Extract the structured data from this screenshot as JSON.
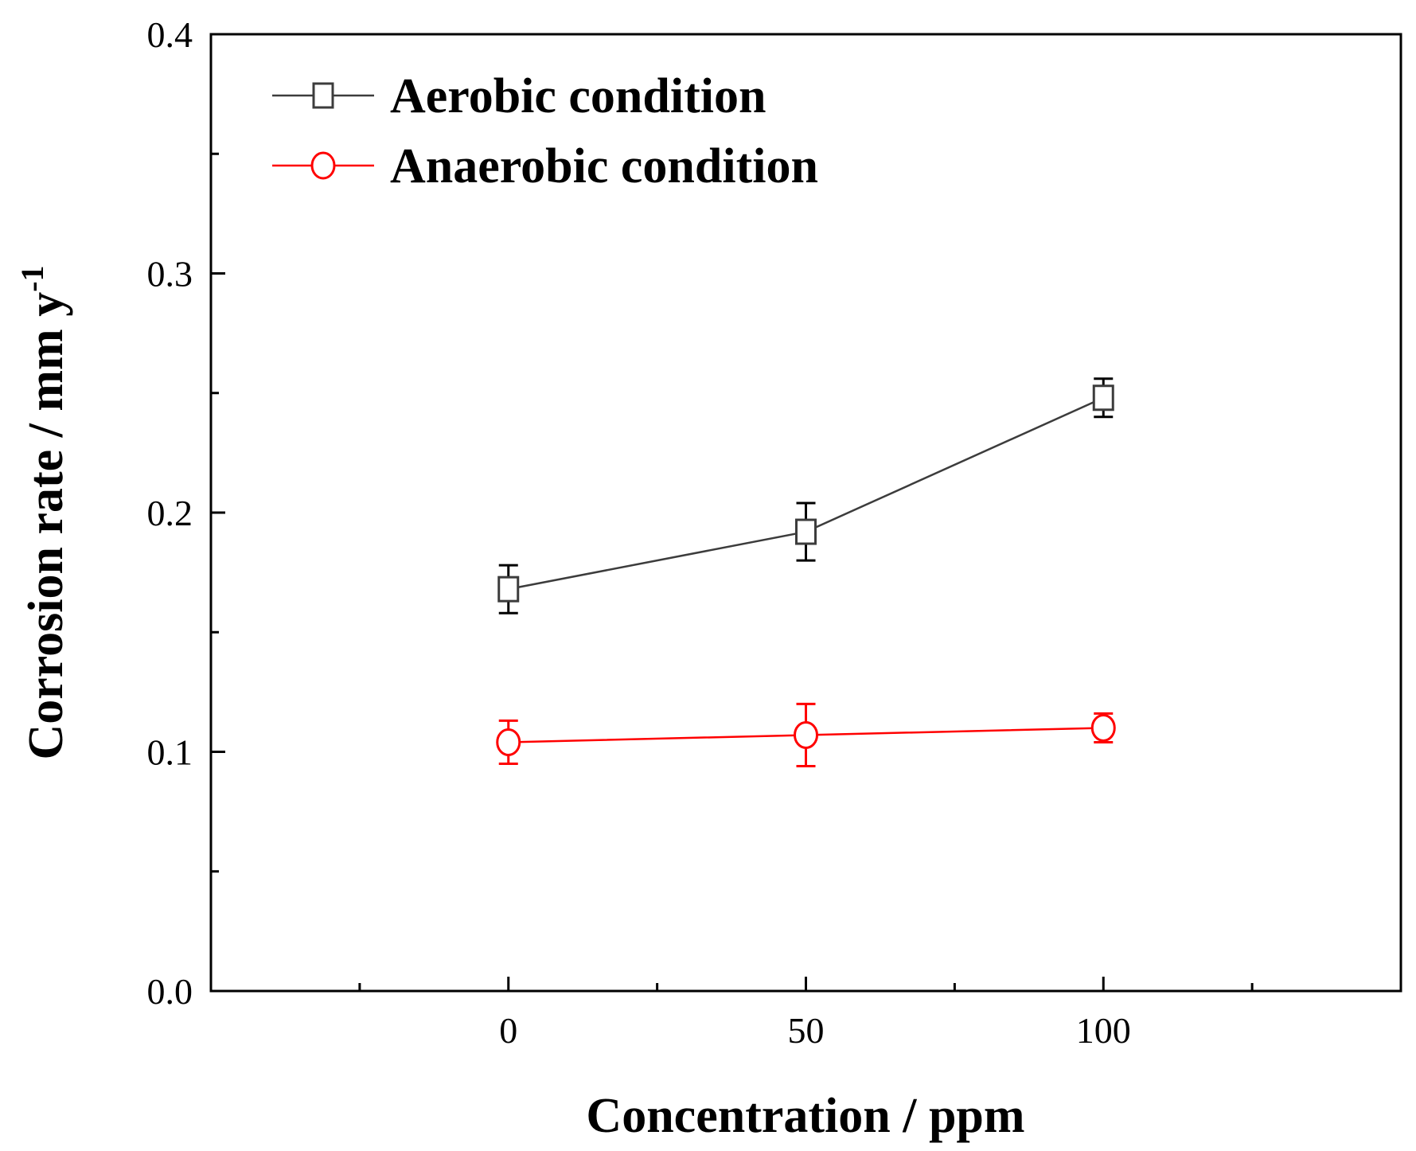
{
  "chart_data": {
    "type": "line",
    "xlabel": "Concentration / ppm",
    "ylabel": "Corrosion rate / mm y",
    "ylabel_superscript": "-1",
    "xlim": [
      -50,
      150
    ],
    "ylim": [
      0.0,
      0.4
    ],
    "x_ticks": [
      0,
      50,
      100
    ],
    "x_tick_labels": [
      "0",
      "50",
      "100"
    ],
    "x_minor_ticks": [
      -25,
      25,
      75,
      125
    ],
    "y_ticks": [
      0.0,
      0.1,
      0.2,
      0.3,
      0.4
    ],
    "y_tick_labels": [
      "0.0",
      "0.1",
      "0.2",
      "0.3",
      "0.4"
    ],
    "y_minor_ticks": [
      0.05,
      0.15,
      0.25,
      0.35
    ],
    "grid": false,
    "legend_position": "top-left",
    "series": [
      {
        "name": "Aerobic condition",
        "color": "#3c3c3c",
        "marker": "square",
        "x": [
          0,
          50,
          100
        ],
        "y": [
          0.168,
          0.192,
          0.248
        ],
        "error": [
          0.01,
          0.012,
          0.008
        ]
      },
      {
        "name": "Anaerobic condition",
        "color": "#ff0000",
        "marker": "circle",
        "x": [
          0,
          50,
          100
        ],
        "y": [
          0.104,
          0.107,
          0.11
        ],
        "error": [
          0.009,
          0.013,
          0.006
        ]
      }
    ]
  }
}
